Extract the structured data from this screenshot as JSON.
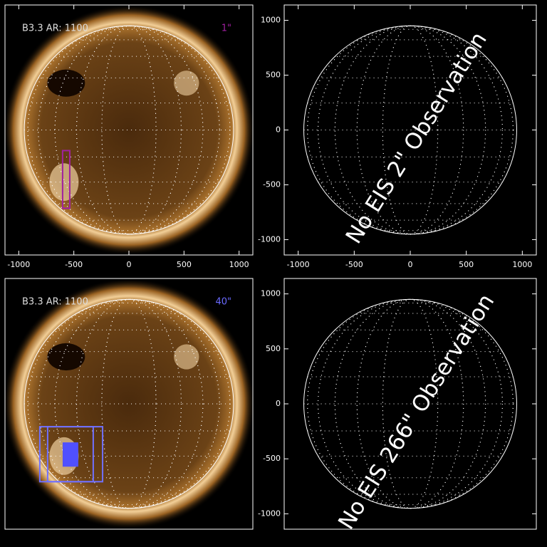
{
  "chart_data": [
    {
      "type": "image",
      "annotation": "B3.3 AR: 1100",
      "label": "1\"",
      "label_color": "#a020a0",
      "xlim": [
        -1125,
        1125
      ],
      "ylim": [
        -1140,
        1140
      ],
      "xticks": [
        -1000,
        -500,
        0,
        500,
        1000
      ],
      "boxes": [
        {
          "x": [
            -602,
            -537
          ],
          "y": [
            -714,
            -188
          ],
          "color": "#a020a0",
          "fill": false
        }
      ]
    },
    {
      "type": "empty",
      "annotation": "No EIS 2\" Observation",
      "xlim": [
        -1125,
        1125
      ],
      "ylim": [
        -1140,
        1140
      ],
      "xticks": [
        -1000,
        -500,
        0,
        500,
        1000
      ],
      "yticks": [
        -1000,
        -500,
        0,
        500,
        1000
      ]
    },
    {
      "type": "image",
      "annotation": "B3.3 AR: 1100",
      "label": "40\"",
      "label_color": "#6a6aff",
      "xlim": [
        -1125,
        1125
      ],
      "ylim": [
        -1140,
        1140
      ],
      "boxes": [
        {
          "x": [
            -809,
            -239
          ],
          "y": [
            -708,
            -208
          ],
          "color": "#7070ff",
          "fill": false
        },
        {
          "x": [
            -738,
            -324
          ],
          "y": [
            -708,
            -208
          ],
          "color": "#7070ff",
          "fill": false
        },
        {
          "x": [
            -595,
            -466
          ],
          "y": [
            -565,
            -357
          ],
          "color": "#5050ff",
          "fill": true
        }
      ]
    },
    {
      "type": "empty",
      "annotation": "No EIS 266\" Observation",
      "xlim": [
        -1125,
        1125
      ],
      "ylim": [
        -1140,
        1140
      ],
      "yticks": [
        -1000,
        -500,
        0,
        500,
        1000
      ]
    }
  ]
}
